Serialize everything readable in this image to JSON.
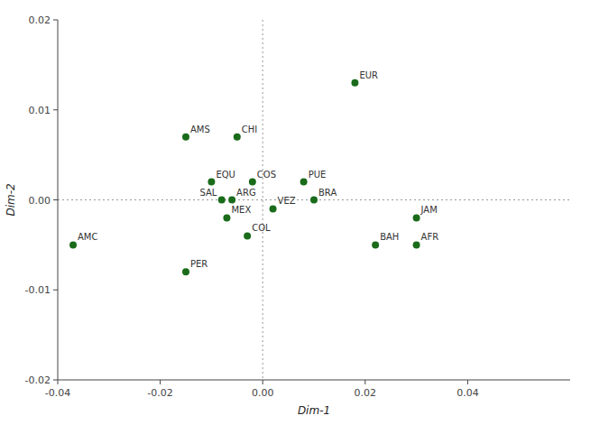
{
  "chart_data": {
    "type": "scatter",
    "x_label": "Dim-1",
    "y_label": "Dim-2",
    "labels": [
      "EUR",
      "CHI",
      "AMS",
      "EQU",
      "SAL",
      "ARG",
      "COS",
      "MEX",
      "COL",
      "VEZ",
      "PUE",
      "BRA",
      "JAM",
      "BAH",
      "AFR",
      "AMC",
      "PER"
    ],
    "x": [
      0.018,
      -0.005,
      -0.015,
      -0.01,
      -0.008,
      -0.006,
      -0.002,
      -0.007,
      -0.003,
      0.002,
      0.008,
      0.01,
      0.03,
      0.022,
      0.03,
      -0.037,
      -0.015
    ],
    "values": [
      0.013,
      0.007,
      0.007,
      0.002,
      0.0,
      0.0,
      0.002,
      -0.002,
      -0.004,
      -0.001,
      0.002,
      0.0,
      -0.002,
      -0.005,
      -0.005,
      -0.005,
      -0.008
    ],
    "color": "#1a6b1a",
    "xlim": [
      -0.04,
      0.06
    ],
    "ylim": [
      -0.02,
      0.02
    ],
    "xticks": [
      -0.04,
      -0.02,
      {
        "value": 0,
        "label": "0.00"
      },
      0.02,
      0.04
    ],
    "yticks": [
      -0.02,
      -0.01,
      {
        "value": 0,
        "label": "0.00"
      },
      0.01,
      0.02
    ],
    "grid": false
  }
}
